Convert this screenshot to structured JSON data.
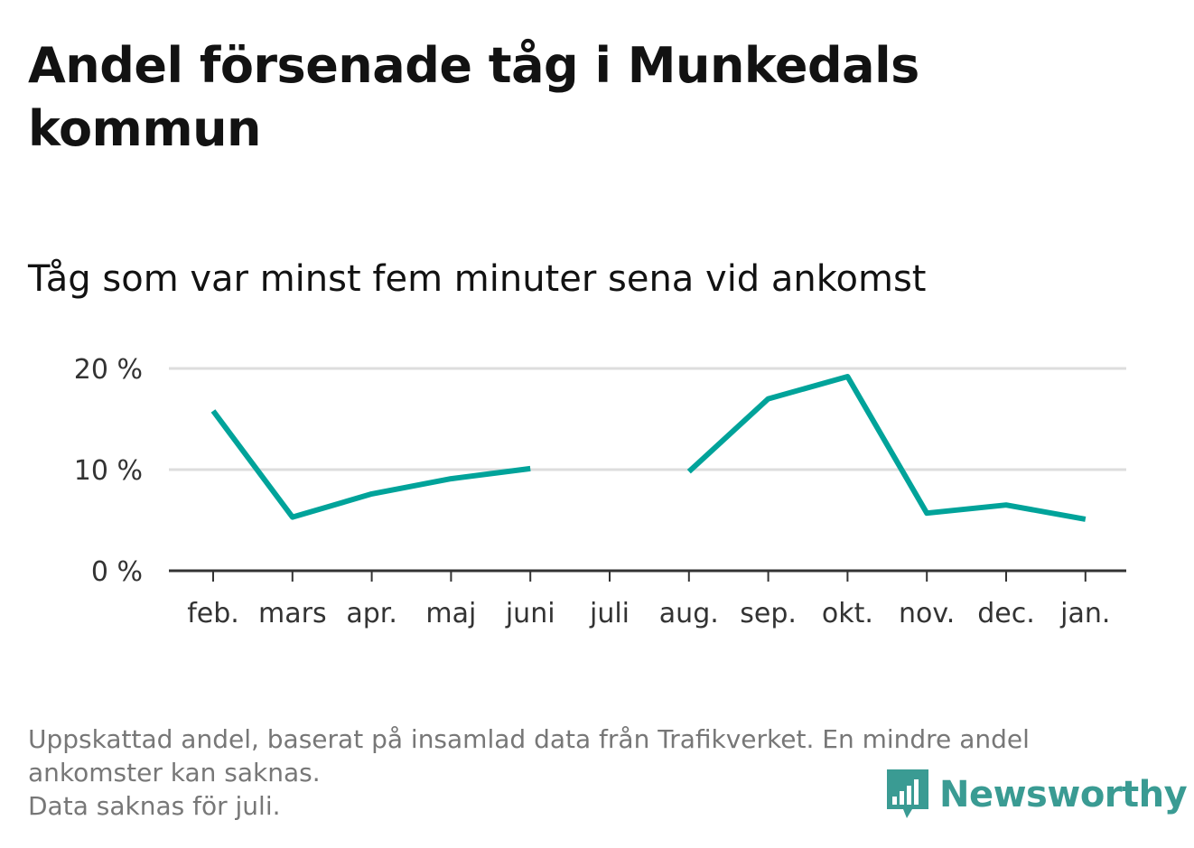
{
  "header": {
    "title": "Andel försenade tåg i Munkedals kommun",
    "subtitle": "Tåg som var minst fem minuter sena vid ankomst"
  },
  "chart_data": {
    "type": "line",
    "categories": [
      "feb.",
      "mars",
      "apr.",
      "maj",
      "juni",
      "juli",
      "aug.",
      "sep.",
      "okt.",
      "nov.",
      "dec.",
      "jan."
    ],
    "series": [
      {
        "values": [
          15.8,
          5.3,
          7.6,
          9.1,
          10.1,
          null,
          9.8,
          17.0,
          19.2,
          5.7,
          6.5,
          5.1
        ]
      }
    ],
    "y_ticks": [
      0,
      10,
      20
    ],
    "y_tick_labels": [
      "0 %",
      "10 %",
      "20 %"
    ],
    "ylim": [
      0,
      20
    ],
    "grid": true,
    "line_color": "#00a39a",
    "gridline_color": "#dddddd",
    "axis_color": "#333333"
  },
  "footer": {
    "note_lines": [
      "Uppskattad andel, baserat på insamlad data från Trafikverket. En mindre andel",
      "ankomster kan saknas.",
      "Data saknas för juli."
    ],
    "brand": "Newsworthy",
    "brand_color": "#3a9b93",
    "brand_icon": "bar-chart-speech-bubble-icon"
  }
}
